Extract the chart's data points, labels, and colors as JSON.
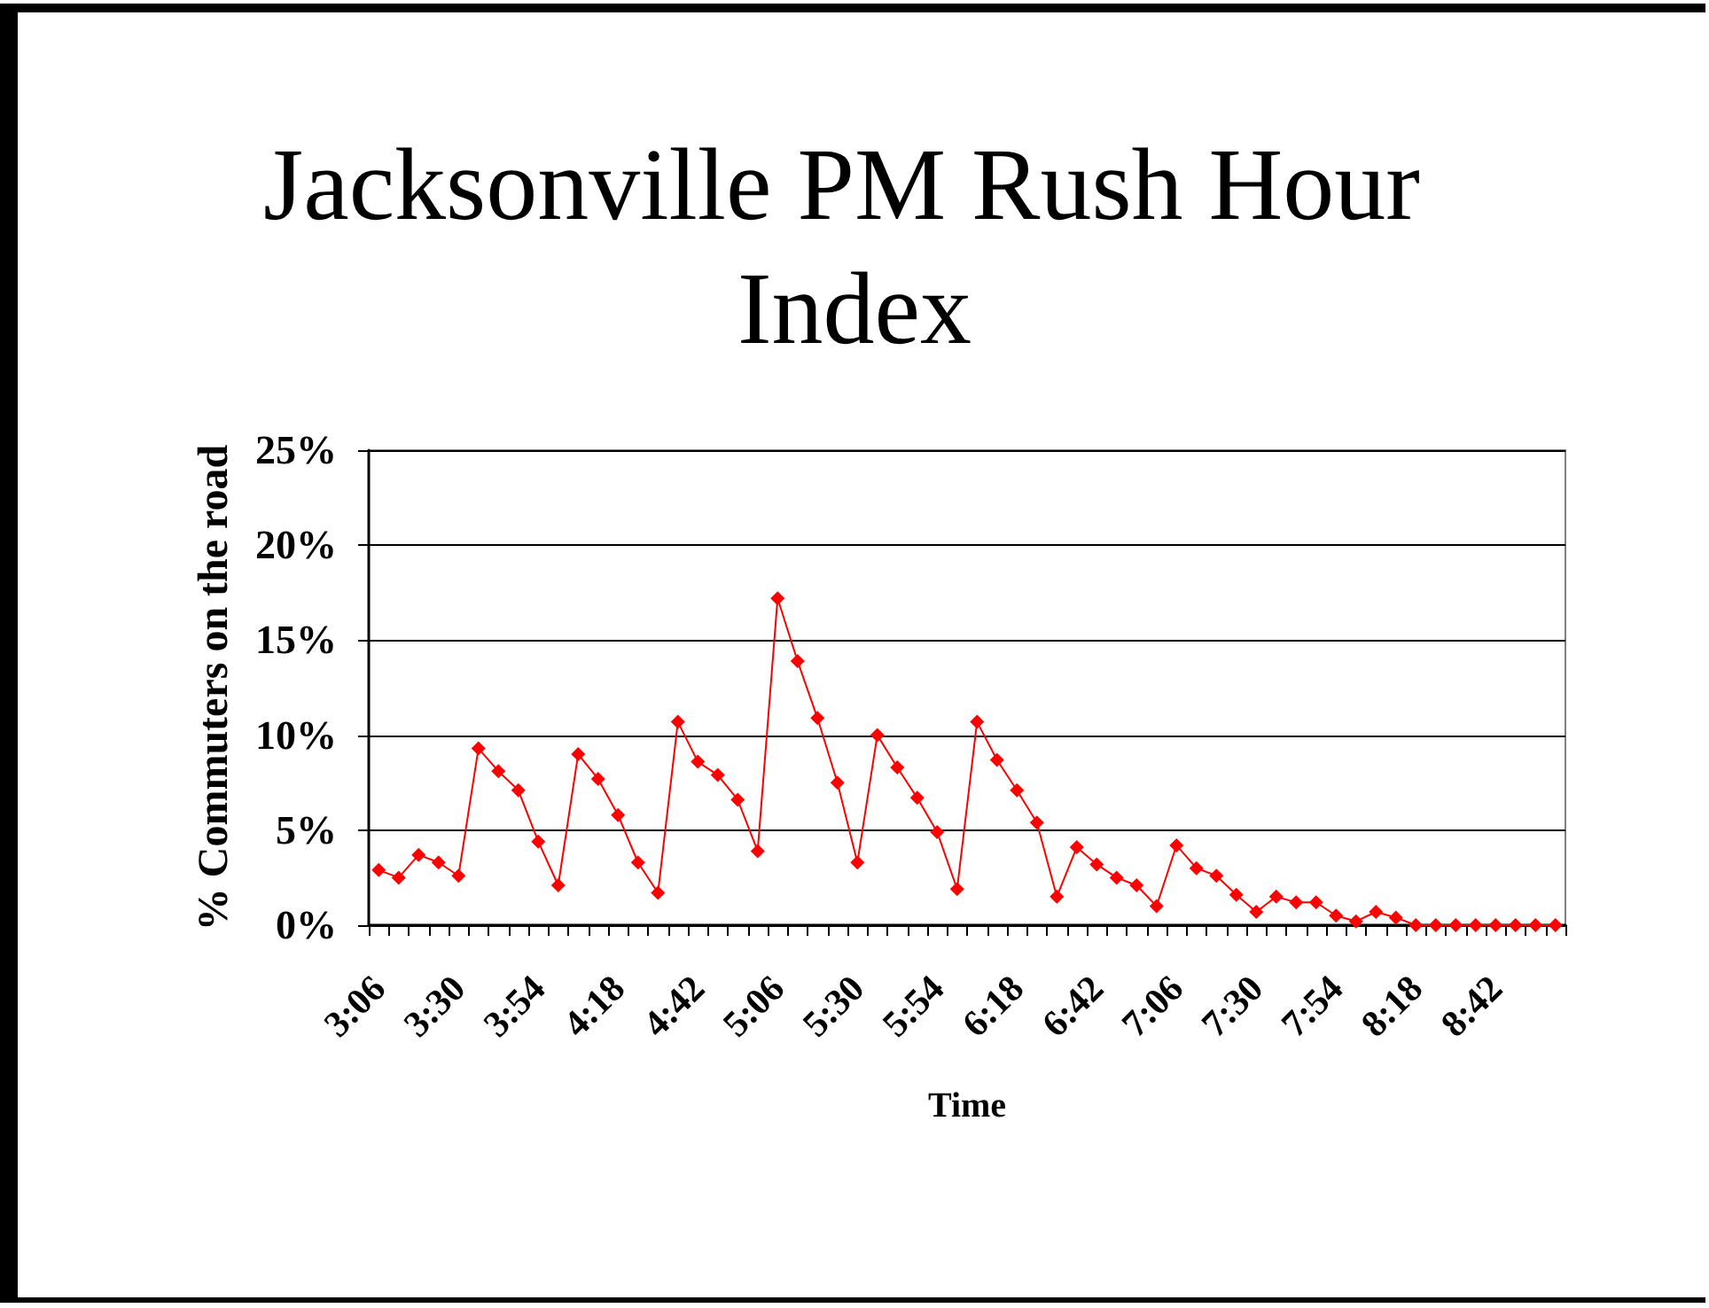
{
  "chart_data": {
    "type": "line",
    "title": "Jacksonville PM Rush Hour Index",
    "xlabel": "Time",
    "ylabel": "% Commuters on the road",
    "categories": [
      "3:06",
      null,
      null,
      null,
      "3:30",
      null,
      null,
      null,
      "3:54",
      null,
      null,
      null,
      "4:18",
      null,
      null,
      null,
      "4:42",
      null,
      null,
      null,
      "5:06",
      null,
      null,
      null,
      "5:30",
      null,
      null,
      null,
      "5:54",
      null,
      null,
      null,
      "6:18",
      null,
      null,
      null,
      "6:42",
      null,
      null,
      null,
      "7:06",
      null,
      null,
      null,
      "7:30",
      null,
      null,
      null,
      "7:54",
      null,
      null,
      null,
      "8:18",
      null,
      null,
      null,
      "8:42",
      null,
      null,
      null
    ],
    "series": [
      {
        "color": "#ff0000",
        "values": [
          2.9,
          2.5,
          3.7,
          3.3,
          2.6,
          9.3,
          8.1,
          7.1,
          4.4,
          2.1,
          9.0,
          7.7,
          5.8,
          3.3,
          1.7,
          10.7,
          8.6,
          7.9,
          6.6,
          3.9,
          17.2,
          13.9,
          10.9,
          7.5,
          3.3,
          10.0,
          8.3,
          6.7,
          4.9,
          1.9,
          10.7,
          8.7,
          7.1,
          5.4,
          1.5,
          4.1,
          3.2,
          2.5,
          2.1,
          1.0,
          4.2,
          3.0,
          2.6,
          1.6,
          0.7,
          1.5,
          1.2,
          1.2,
          0.5,
          0.2,
          0.7,
          0.4,
          0,
          0,
          0,
          0,
          0,
          0,
          0,
          0
        ]
      }
    ],
    "ylim": [
      0,
      25
    ],
    "yticks": [
      {
        "value": 0,
        "label": "0%"
      },
      {
        "value": 5,
        "label": "5%"
      },
      {
        "value": 10,
        "label": "10%"
      },
      {
        "value": 15,
        "label": "15%"
      },
      {
        "value": 20,
        "label": "20%"
      },
      {
        "value": 25,
        "label": "25%"
      }
    ],
    "grid": "y",
    "legend": false,
    "marker": "diamond",
    "line_style": "solid"
  }
}
